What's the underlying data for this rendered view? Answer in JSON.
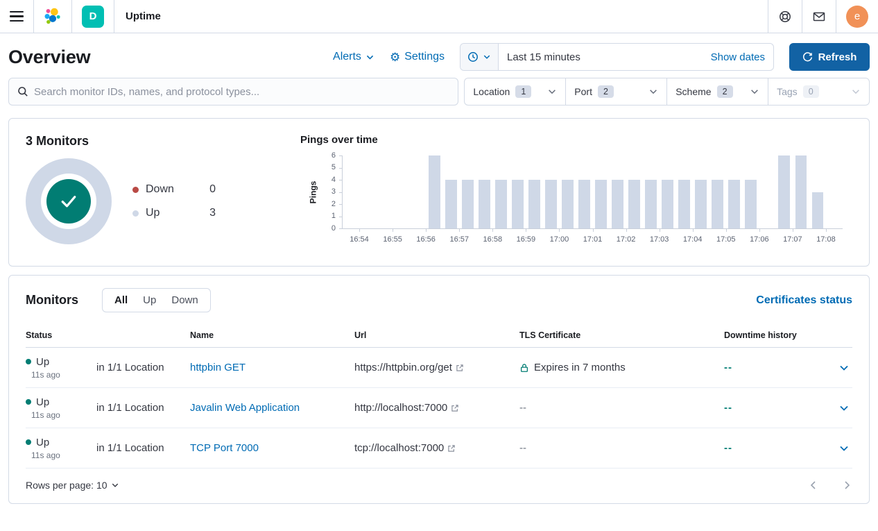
{
  "colors": {
    "link": "#006bb4",
    "refresh-button": "#1262a4",
    "panel-border": "#d3dae6",
    "text": "#343741",
    "text-subdued": "#69707d",
    "text-disabled": "#98a2b3",
    "heading": "#1a1c21",
    "success": "#017d73",
    "danger": "#b94a45",
    "up-fill": "#cfd8e7",
    "teal-badge": "#00bfb3",
    "avatar": "#f19157"
  },
  "header": {
    "app_title": "Uptime",
    "space_badge": "D",
    "avatar_initial": "e"
  },
  "toolbar": {
    "page_title": "Overview",
    "alerts_label": "Alerts",
    "settings_label": "Settings",
    "time_range": "Last 15 minutes",
    "show_dates_label": "Show dates",
    "refresh_label": "Refresh"
  },
  "search": {
    "placeholder": "Search monitor IDs, names, and protocol types..."
  },
  "filters": [
    {
      "label": "Location",
      "count": "1"
    },
    {
      "label": "Port",
      "count": "2"
    },
    {
      "label": "Scheme",
      "count": "2"
    },
    {
      "label": "Tags",
      "count": "0"
    }
  ],
  "summary": {
    "title": "3 Monitors",
    "legend": [
      {
        "label": "Down",
        "value": "0",
        "color": "#b94a45"
      },
      {
        "label": "Up",
        "value": "3",
        "color": "#cfd8e7"
      }
    ]
  },
  "chart_data": {
    "type": "bar",
    "title": "Pings over time",
    "ylabel": "Pings",
    "ylim": [
      0,
      6
    ],
    "y_ticks": [
      0,
      1,
      2,
      3,
      4,
      5,
      6
    ],
    "x_ticks": [
      "16:54",
      "16:55",
      "16:56",
      "16:57",
      "16:58",
      "16:59",
      "17:00",
      "17:01",
      "17:02",
      "17:03",
      "17:04",
      "17:05",
      "17:06",
      "17:07",
      "17:08"
    ],
    "x_domain": [
      "16:53:30",
      "17:08:30"
    ],
    "bucket_seconds": 30,
    "bar_color": "#cfd8e7",
    "bars": [
      {
        "time": "16:56:00",
        "value": 6
      },
      {
        "time": "16:56:30",
        "value": 4
      },
      {
        "time": "16:57:00",
        "value": 4
      },
      {
        "time": "16:57:30",
        "value": 4
      },
      {
        "time": "16:58:00",
        "value": 4
      },
      {
        "time": "16:58:30",
        "value": 4
      },
      {
        "time": "16:59:00",
        "value": 4
      },
      {
        "time": "16:59:30",
        "value": 4
      },
      {
        "time": "17:00:00",
        "value": 4
      },
      {
        "time": "17:00:30",
        "value": 4
      },
      {
        "time": "17:01:00",
        "value": 4
      },
      {
        "time": "17:01:30",
        "value": 4
      },
      {
        "time": "17:02:00",
        "value": 4
      },
      {
        "time": "17:02:30",
        "value": 4
      },
      {
        "time": "17:03:00",
        "value": 4
      },
      {
        "time": "17:03:30",
        "value": 4
      },
      {
        "time": "17:04:00",
        "value": 4
      },
      {
        "time": "17:04:30",
        "value": 4
      },
      {
        "time": "17:05:00",
        "value": 4
      },
      {
        "time": "17:05:30",
        "value": 4
      },
      {
        "time": "17:06:30",
        "value": 6
      },
      {
        "time": "17:07:00",
        "value": 6
      },
      {
        "time": "17:07:30",
        "value": 3
      }
    ]
  },
  "monitors": {
    "title": "Monitors",
    "tabs": [
      "All",
      "Up",
      "Down"
    ],
    "active_tab": "All",
    "certificates_link": "Certificates status",
    "columns": [
      "Status",
      "Name",
      "Url",
      "TLS Certificate",
      "Downtime history"
    ],
    "rows": [
      {
        "status": "Up",
        "ago": "11s ago",
        "location": "in 1/1 Location",
        "name": "httpbin GET",
        "url": "https://httpbin.org/get",
        "tls": "Expires in 7 months",
        "tls_lock": true,
        "downtime": "--"
      },
      {
        "status": "Up",
        "ago": "11s ago",
        "location": "in 1/1 Location",
        "name": "Javalin Web Application",
        "url": "http://localhost:7000",
        "tls": "--",
        "tls_lock": false,
        "downtime": "--"
      },
      {
        "status": "Up",
        "ago": "11s ago",
        "location": "in 1/1 Location",
        "name": "TCP Port 7000",
        "url": "tcp://localhost:7000",
        "tls": "--",
        "tls_lock": false,
        "downtime": "--"
      }
    ],
    "rows_per_page_label": "Rows per page: 10"
  }
}
